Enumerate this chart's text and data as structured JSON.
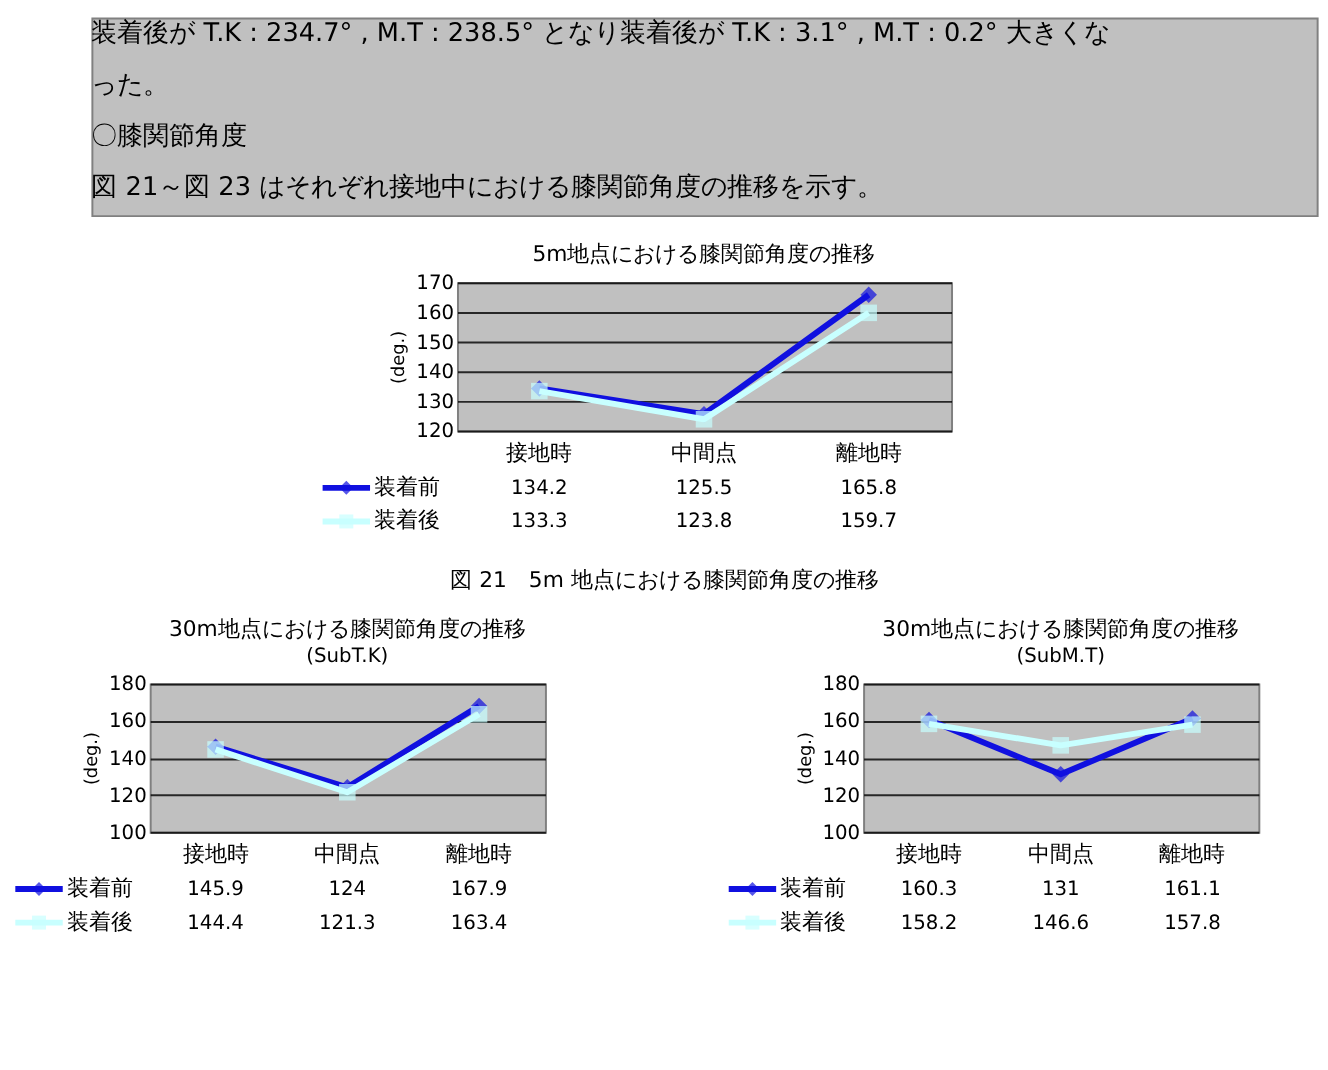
{
  "chart_data": [
    {
      "type": "line",
      "title": "5m地点における膝関節角度の推移",
      "ylabel": "(deg.)",
      "annotations": [
        "装着後が T.K : 234.7° , M.T : 238.5° となり装着後が T.K : 3.1° , M.T : 0.2° 大きくな",
        "った。",
        "〇膝関節角度",
        "図 21～図 23 はそれぞれ接地中における膝関節角度の推移を示す。",
        "図 21　5m 地点における膝関節角度の推移"
      ],
      "categories": [
        "接地時",
        "中間点",
        "離地時"
      ],
      "series": [
        {
          "name": "装着前",
          "color": "#1010e0",
          "marker": "diamond",
          "values": [
            134.2,
            125.5,
            165.8
          ]
        },
        {
          "name": "装着後",
          "color": "#c8ffff",
          "marker": "square",
          "values": [
            133.3,
            123.8,
            159.7
          ]
        }
      ],
      "ylim": [
        120,
        170
      ],
      "yticks": [
        120,
        130,
        140,
        150,
        160,
        170
      ],
      "grid": "y",
      "legend": "bottom",
      "data_labels": true,
      "line_style": "solid"
    },
    {
      "type": "line",
      "title": "30m地点における膝関節角度の推移",
      "subtitle": "(SubT.K)",
      "ylabel": "(deg.)",
      "categories": [
        "接地時",
        "中間点",
        "離地時"
      ],
      "series": [
        {
          "name": "装着前",
          "color": "#1010e0",
          "marker": "diamond",
          "values": [
            145.9,
            124,
            167.9
          ]
        },
        {
          "name": "装着後",
          "color": "#c8ffff",
          "marker": "square",
          "values": [
            144.4,
            121.3,
            163.4
          ]
        }
      ],
      "ylim": [
        100,
        180
      ],
      "yticks": [
        100,
        120,
        140,
        160,
        180
      ],
      "grid": "y",
      "legend": "bottom",
      "data_labels": true,
      "line_style": "solid"
    },
    {
      "type": "line",
      "title": "30m地点における膝関節角度の推移",
      "subtitle": "(SubM.T)",
      "ylabel": "(deg.)",
      "categories": [
        "接地時",
        "中間点",
        "離地時"
      ],
      "series": [
        {
          "name": "装着前",
          "color": "#1010e0",
          "marker": "diamond",
          "values": [
            160.3,
            131,
            161.1
          ]
        },
        {
          "name": "装着後",
          "color": "#c8ffff",
          "marker": "square",
          "values": [
            158.2,
            146.6,
            157.8
          ]
        }
      ],
      "ylim": [
        100,
        180
      ],
      "yticks": [
        100,
        120,
        140,
        160,
        180
      ],
      "grid": "y",
      "legend": "bottom",
      "data_labels": true,
      "line_style": "solid"
    }
  ]
}
